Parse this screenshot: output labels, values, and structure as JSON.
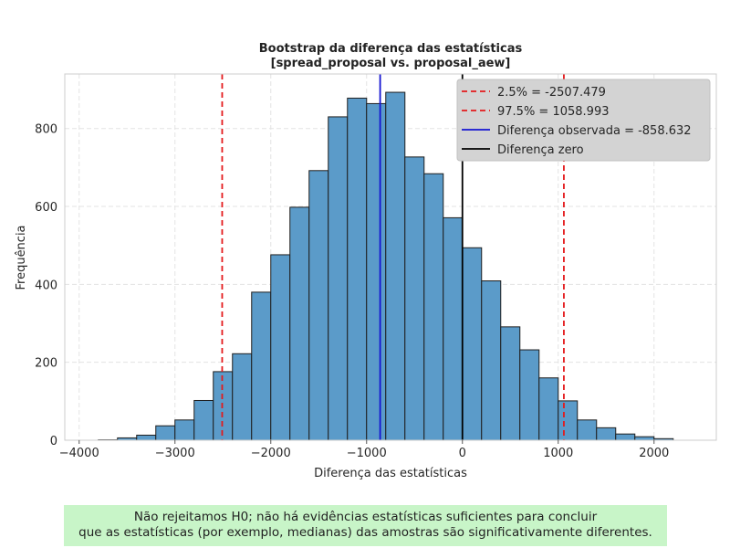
{
  "chart_data": {
    "type": "bar",
    "title": "Bootstrap da diferença das estatísticas",
    "subtitle": "[spread_proposal vs. proposal_aew]",
    "xlabel": "Diferença das estatísticas",
    "ylabel": "Frequência",
    "xlim": [
      -4150,
      2650
    ],
    "ylim": [
      0,
      940
    ],
    "xticks": [
      -4000,
      -3000,
      -2000,
      -1000,
      0,
      1000,
      2000
    ],
    "xtick_labels": [
      "−4000",
      "−3000",
      "−2000",
      "−1000",
      "0",
      "1000",
      "2000"
    ],
    "yticks": [
      0,
      200,
      400,
      600,
      800
    ],
    "ytick_labels": [
      "0",
      "200",
      "400",
      "600",
      "800"
    ],
    "grid": true,
    "bar_color": "#5b9bc9",
    "bin_edges": [
      -3800,
      -3600,
      -3400,
      -3200,
      -3000,
      -2800,
      -2600,
      -2400,
      -2200,
      -2000,
      -1800,
      -1600,
      -1400,
      -1200,
      -1000,
      -800,
      -600,
      -400,
      -200,
      0,
      200,
      400,
      600,
      800,
      1000,
      1200,
      1400,
      1600,
      1800,
      2000,
      2200,
      2350
    ],
    "values": [
      1,
      6,
      13,
      37,
      52,
      102,
      176,
      222,
      380,
      476,
      598,
      692,
      830,
      878,
      864,
      893,
      727,
      684,
      571,
      494,
      409,
      291,
      232,
      160,
      101,
      52,
      32,
      16,
      9,
      4,
      0
    ],
    "lines": [
      {
        "label": "2.5% = -2507.479",
        "x": -2507.479,
        "color": "#e41a1c",
        "style": "dashed"
      },
      {
        "label": "97.5% = 1058.993",
        "x": 1058.993,
        "color": "#e41a1c",
        "style": "dashed"
      },
      {
        "label": "Diferença observada = -858.632",
        "x": -858.632,
        "color": "#1414d2",
        "style": "solid"
      },
      {
        "label": "Diferença zero",
        "x": 0,
        "color": "#000000",
        "style": "solid"
      }
    ],
    "legend_position": "top-right"
  },
  "conclusion": {
    "line1": "Não rejeitamos H0; não há evidências estatísticas suficientes para concluir",
    "line2": "que as estatísticas (por exemplo, medianas) das amostras são significativamente diferentes."
  }
}
